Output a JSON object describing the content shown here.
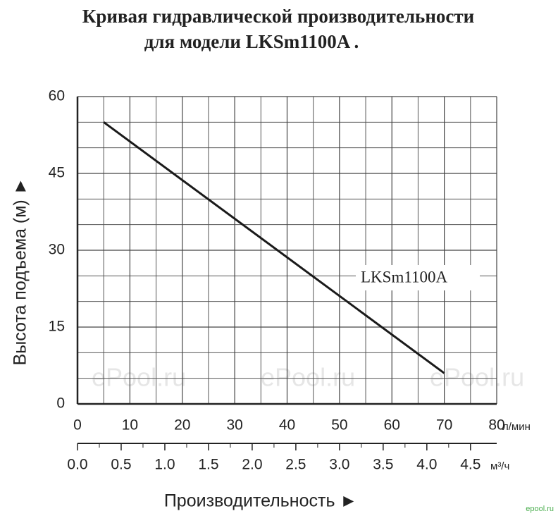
{
  "chart_data": {
    "type": "line",
    "title": "Кривая гидравлической производительности",
    "subtitle": "для модели LKSm1100A .",
    "x_label": "Производительность ►",
    "y_label": "Высота подъема (м) ►",
    "x_unit": "л/мин",
    "x2_unit": "м³/ч",
    "x": [
      5,
      70
    ],
    "series": [
      {
        "name": "LKSm1100A",
        "color": "#1a1a1a",
        "values": [
          55,
          6
        ]
      }
    ],
    "xlim": [
      0,
      80
    ],
    "xticks": [
      0,
      10,
      20,
      30,
      40,
      50,
      60,
      70,
      80
    ],
    "x2lim": [
      0,
      4.8
    ],
    "x2ticks": [
      {
        "value": 0,
        "label": "0.0"
      },
      0.5,
      {
        "value": 1,
        "label": "1.0"
      },
      1.5,
      {
        "value": 2,
        "label": "2.0"
      },
      2.5,
      {
        "value": 3,
        "label": "3.0"
      },
      3.5,
      {
        "value": 4,
        "label": "4.0"
      },
      4.5
    ],
    "ylim": [
      0,
      60
    ],
    "yticks": [
      0,
      15,
      30,
      45,
      60
    ],
    "grid": true,
    "watermark": "ePool.ru",
    "logo": "epool.ru"
  }
}
